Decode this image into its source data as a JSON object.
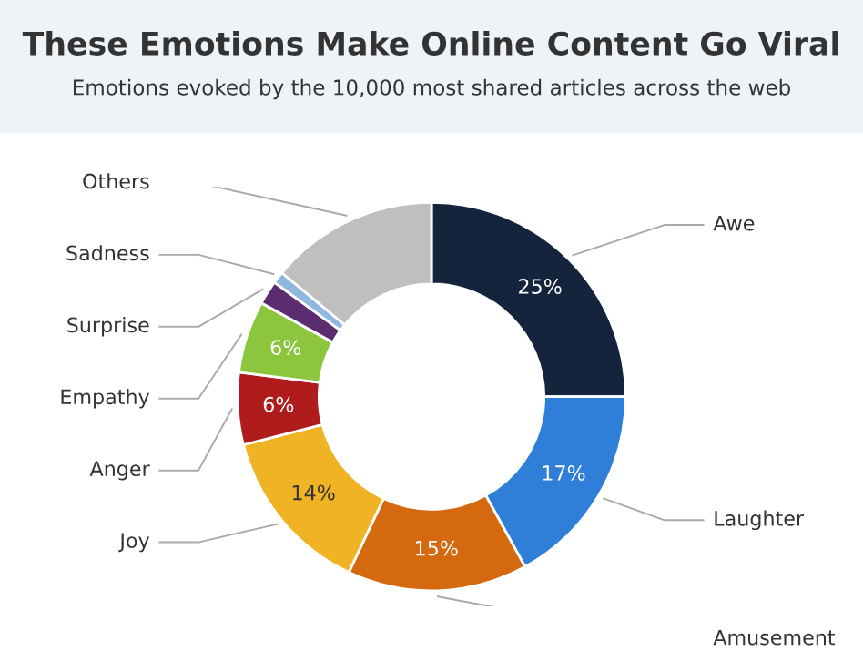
{
  "chart_data": {
    "type": "donut",
    "title": "These Emotions Make Online Content Go Viral",
    "subtitle": "Emotions evoked by the 10,000 most shared articles across the web",
    "categories": [
      "Awe",
      "Laughter",
      "Amusement",
      "Joy",
      "Anger",
      "Empathy",
      "Surprise",
      "Sadness",
      "Others"
    ],
    "values": [
      25,
      17,
      15,
      14,
      6,
      6,
      2,
      1,
      14
    ],
    "colors": [
      "#14243c",
      "#2f7fd8",
      "#d4690f",
      "#f0b323",
      "#b01c1c",
      "#8cc63f",
      "#5b2c6f",
      "#8fb8e0",
      "#bfbfbf"
    ],
    "value_labels": [
      "25%",
      "17%",
      "15%",
      "14%",
      "6%",
      "6%",
      null,
      null,
      null
    ],
    "legend": false
  }
}
